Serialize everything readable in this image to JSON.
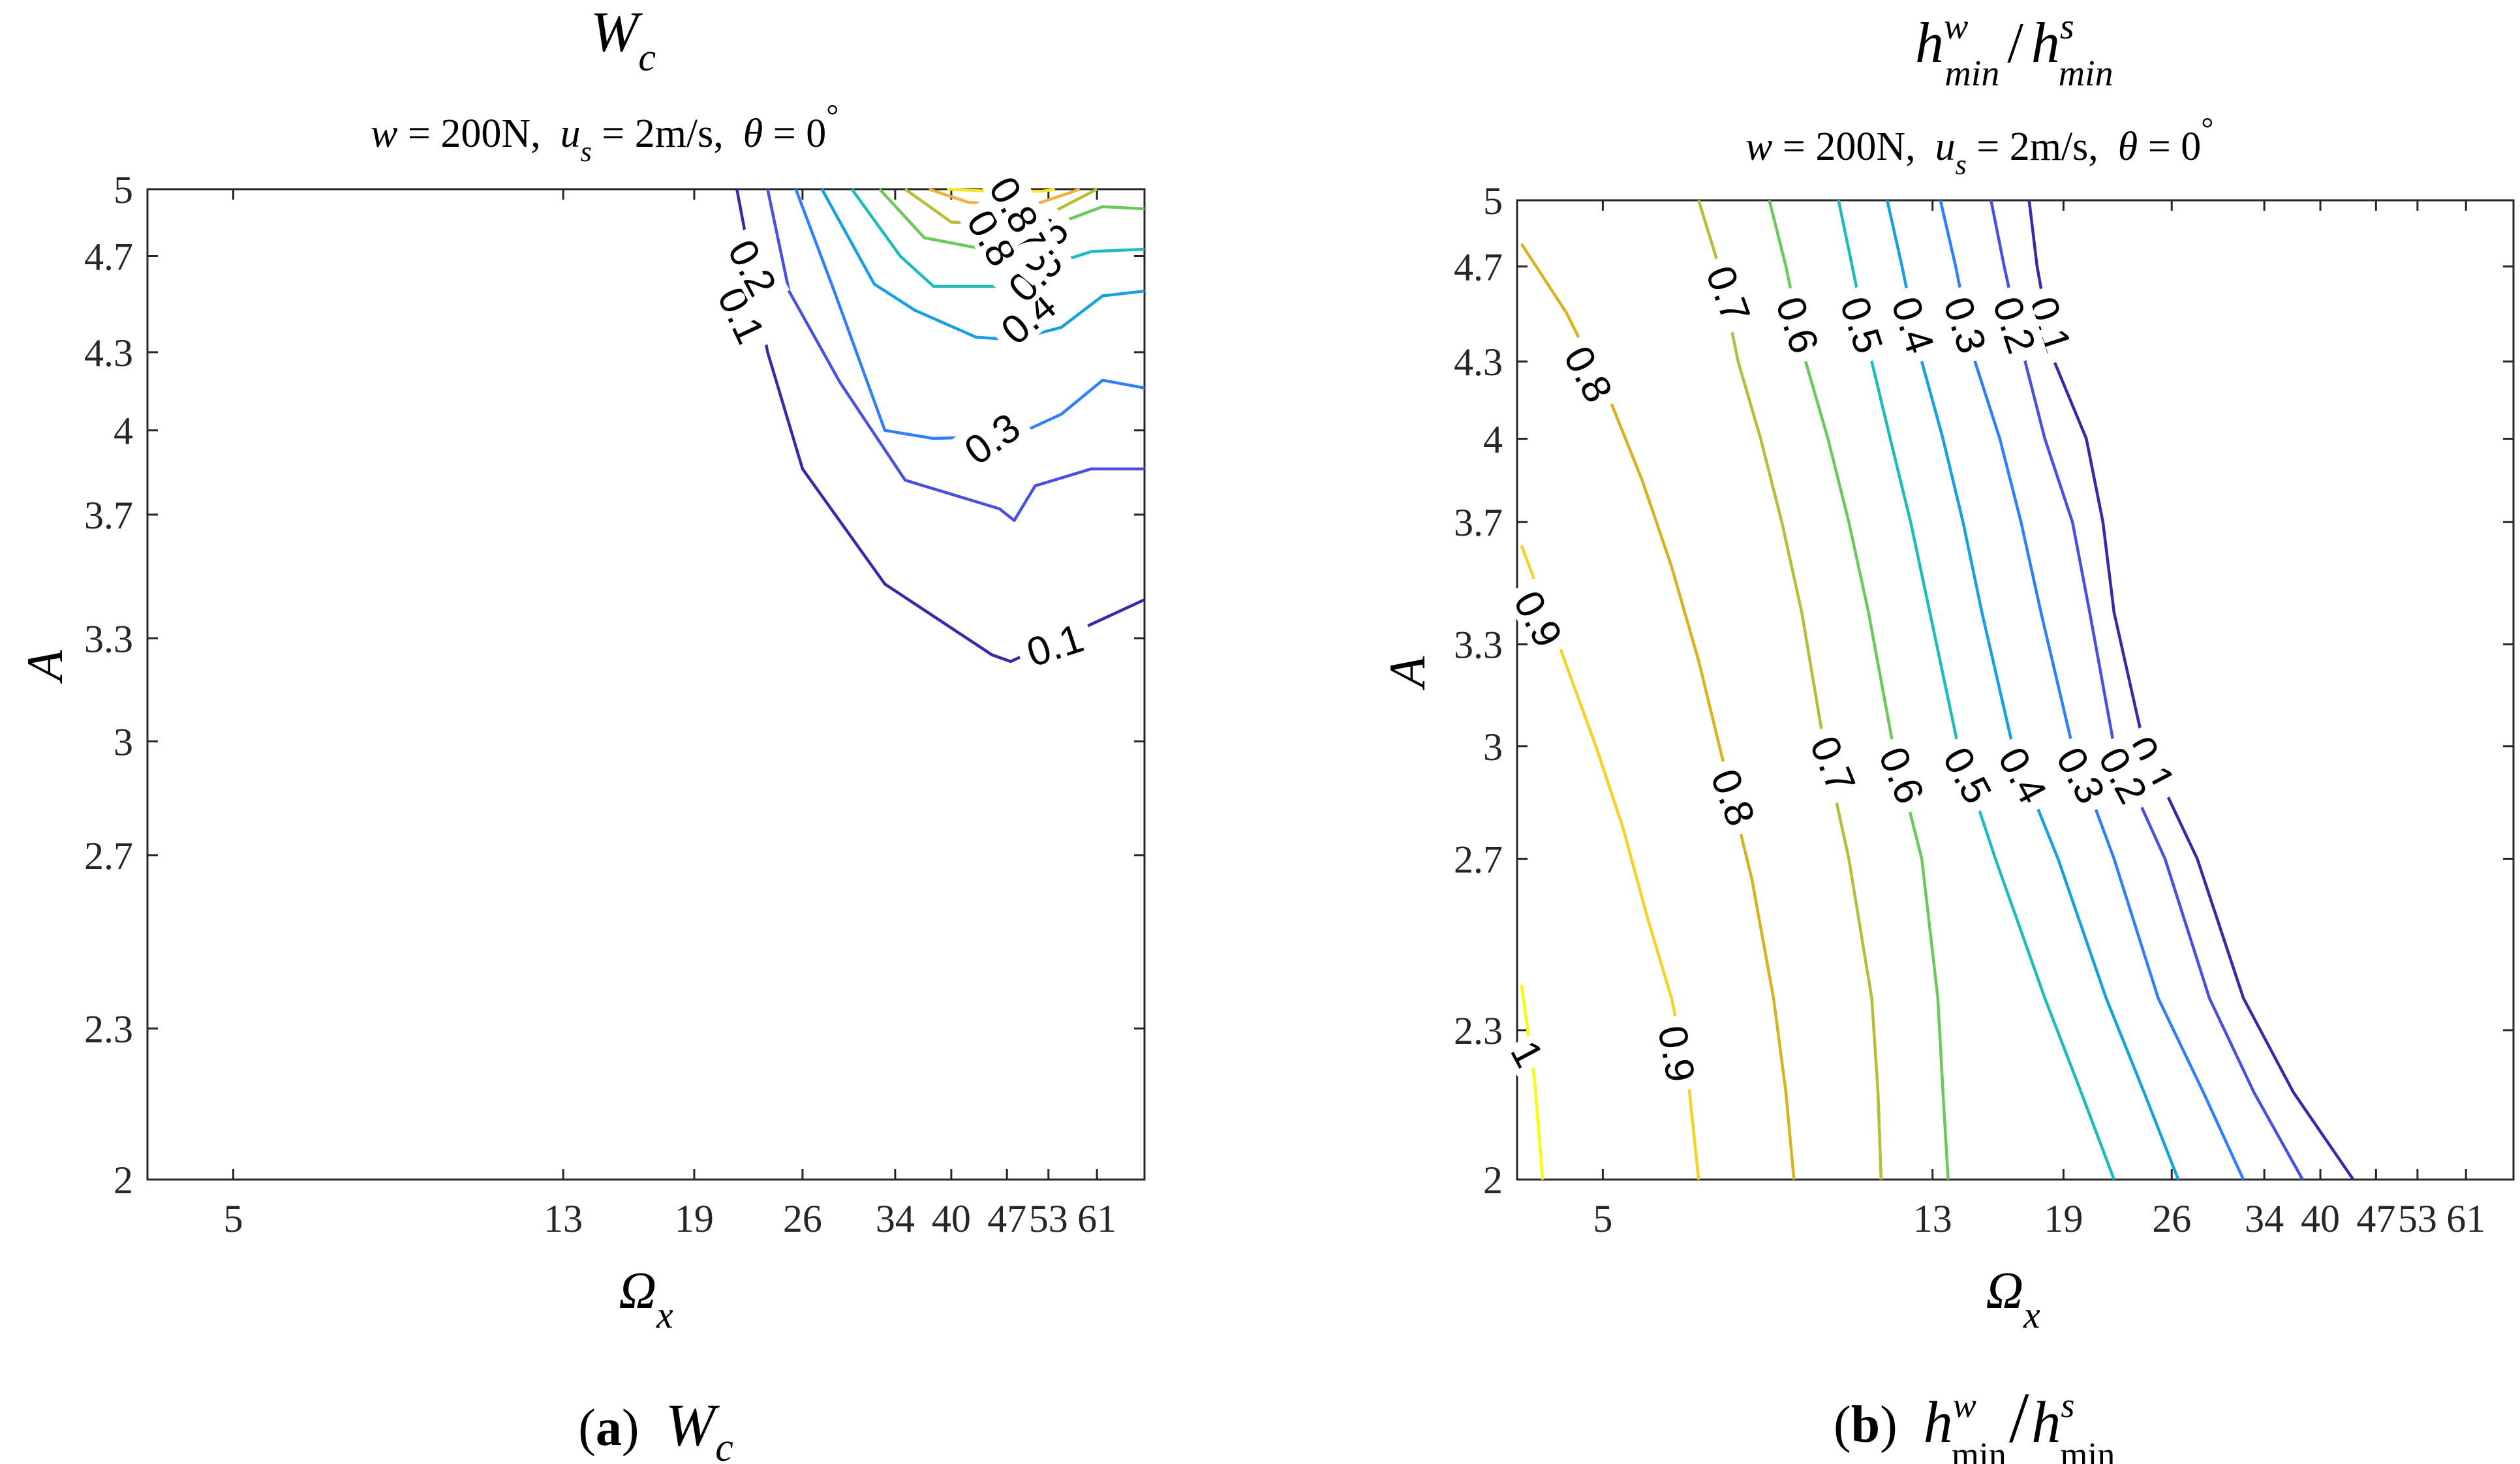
{
  "figure": {
    "panels": [
      {
        "id": "a",
        "title_main": "W",
        "title_sub": "c",
        "conditions": {
          "w_sym": "w",
          "w_val": " = 200N,",
          "u_sym": "u",
          "u_sub": "s",
          "u_val": " = 2m/s,",
          "theta_sym": "θ",
          "theta_val": " = 0",
          "deg": "°"
        },
        "xlabel_main": "Ω",
        "xlabel_sub": "x",
        "ylabel": "A",
        "caption": {
          "letter_open": "(",
          "letter": "a",
          "letter_close": ")",
          "main": "W",
          "sub": "c"
        }
      },
      {
        "id": "b",
        "title_main": "h / h",
        "title_sup1": "w",
        "title_sub1": "min",
        "title_sup2": "s",
        "title_sub2": "min",
        "conditions": {
          "w_sym": "w",
          "w_val": " = 200N,",
          "u_sym": "u",
          "u_sub": "s",
          "u_val": " = 2m/s,",
          "theta_sym": "θ",
          "theta_val": " = 0",
          "deg": "°"
        },
        "xlabel_main": "Ω",
        "xlabel_sub": "x",
        "ylabel": "A",
        "caption": {
          "letter_open": "(",
          "letter": "b",
          "letter_close": ")",
          "sup1": "w",
          "sub1": "min",
          "sup2": "s",
          "sub2": "min"
        }
      }
    ]
  },
  "chart_data": [
    {
      "type": "contour",
      "title": "W_c",
      "xlabel": "Ω_x",
      "ylabel": "A",
      "x_axis": {
        "scale": "log",
        "range": [
          3.9,
          70
        ],
        "ticks": [
          5,
          13,
          19,
          26,
          34,
          40,
          47,
          53,
          61
        ],
        "tick_labels": [
          "5",
          "13",
          "19",
          "26",
          "34",
          "40",
          "47",
          "53",
          "61"
        ]
      },
      "y_axis": {
        "scale": "log",
        "range": [
          2,
          5
        ],
        "ticks": [
          2,
          2.3,
          2.7,
          3,
          3.3,
          3.7,
          4,
          4.3,
          4.7,
          5
        ],
        "tick_labels": [
          "2",
          "2.3",
          "2.7",
          "3",
          "3.3",
          "3.7",
          "4",
          "4.3",
          "4.7",
          "5"
        ]
      },
      "levels": [
        {
          "level": 0.1,
          "color": "#3e26a8",
          "points": [
            [
              21.5,
              5.0
            ],
            [
              23.5,
              4.3
            ],
            [
              26,
              3.86
            ],
            [
              33,
              3.47
            ],
            [
              45,
              3.25
            ],
            [
              47.5,
              3.23
            ],
            [
              70,
              3.42
            ]
          ]
        },
        {
          "level": 0.2,
          "color": "#4850e0",
          "points": [
            [
              23.5,
              5.0
            ],
            [
              25,
              4.55
            ],
            [
              29,
              4.18
            ],
            [
              35,
              3.82
            ],
            [
              46,
              3.72
            ],
            [
              48,
              3.68
            ],
            [
              51,
              3.8
            ],
            [
              60,
              3.86
            ],
            [
              70,
              3.86
            ]
          ]
        },
        {
          "level": 0.3,
          "color": "#2f7ffb",
          "points": [
            [
              25.5,
              5.0
            ],
            [
              28.5,
              4.55
            ],
            [
              33,
              4.0
            ],
            [
              38,
              3.97
            ],
            [
              48,
              3.98
            ],
            [
              55,
              4.06
            ],
            [
              62,
              4.19
            ],
            [
              70,
              4.16
            ]
          ]
        },
        {
          "level": 0.4,
          "color": "#16a0e1",
          "points": [
            [
              27.5,
              5.0
            ],
            [
              32,
              4.58
            ],
            [
              36,
              4.47
            ],
            [
              43,
              4.36
            ],
            [
              48,
              4.35
            ],
            [
              55,
              4.4
            ],
            [
              62,
              4.53
            ],
            [
              70,
              4.55
            ]
          ]
        },
        {
          "level": 0.5,
          "color": "#1cbcbb",
          "points": [
            [
              30,
              5.0
            ],
            [
              34.5,
              4.7
            ],
            [
              38,
              4.57
            ],
            [
              46,
              4.57
            ],
            [
              52,
              4.65
            ],
            [
              60,
              4.72
            ],
            [
              70,
              4.73
            ]
          ]
        },
        {
          "level": 0.6,
          "color": "#6bc85a",
          "points": [
            [
              32.5,
              5.0
            ],
            [
              37,
              4.78
            ],
            [
              44,
              4.73
            ],
            [
              50,
              4.78
            ],
            [
              56,
              4.86
            ],
            [
              62,
              4.92
            ],
            [
              70,
              4.91
            ]
          ]
        },
        {
          "level": 0.7,
          "color": "#b6bd38",
          "points": [
            [
              35,
              5.0
            ],
            [
              40,
              4.85
            ],
            [
              48,
              4.84
            ],
            [
              54,
              4.9
            ],
            [
              61,
              5.0
            ]
          ]
        },
        {
          "level": 0.8,
          "color": "#f2b03c",
          "points": [
            [
              37.5,
              5.0
            ],
            [
              42,
              4.94
            ],
            [
              50,
              4.92
            ],
            [
              56,
              4.98
            ],
            [
              58,
              5.0
            ]
          ]
        },
        {
          "level": 0.9,
          "color": "#f9e821",
          "points": [
            [
              39.5,
              5.0
            ],
            [
              45,
              4.99
            ],
            [
              52,
              4.99
            ],
            [
              54,
              5.0
            ]
          ]
        }
      ],
      "contour_labels": [
        {
          "text": "0.1",
          "x": 54,
          "y": 3.28,
          "rotate": -18
        },
        {
          "text": "0.1",
          "x": 21.8,
          "y": 4.45,
          "rotate": 65
        },
        {
          "text": "0.2",
          "x": 22.5,
          "y": 4.65,
          "rotate": 62
        },
        {
          "text": "0.3",
          "x": 45,
          "y": 3.97,
          "rotate": -35
        },
        {
          "text": "0.4",
          "x": 50,
          "y": 4.44,
          "rotate": -40
        },
        {
          "text": "0.5",
          "x": 51,
          "y": 4.62,
          "rotate": -45
        },
        {
          "text": "0.6",
          "x": 52,
          "y": 4.75,
          "rotate": -50
        },
        {
          "text": "0.8",
          "x": 45,
          "y": 4.78,
          "rotate": 60
        },
        {
          "text": "0.7",
          "x": 49,
          "y": 4.84,
          "rotate": 60
        },
        {
          "text": "0.8",
          "x": 48,
          "y": 4.93,
          "rotate": 60
        }
      ]
    },
    {
      "type": "contour",
      "title": "h^w_min / h^s_min",
      "xlabel": "Ω_x",
      "ylabel": "A",
      "x_axis": {
        "scale": "log",
        "range": [
          3.9,
          70
        ],
        "ticks": [
          5,
          13,
          19,
          26,
          34,
          40,
          47,
          53,
          61
        ],
        "tick_labels": [
          "5",
          "13",
          "19",
          "26",
          "34",
          "40",
          "47",
          "53",
          "61"
        ]
      },
      "y_axis": {
        "scale": "log",
        "range": [
          2,
          5
        ],
        "ticks": [
          2,
          2.3,
          2.7,
          3,
          3.3,
          3.7,
          4,
          4.3,
          4.7,
          5
        ],
        "tick_labels": [
          "2",
          "2.3",
          "2.7",
          "3",
          "3.3",
          "3.7",
          "4",
          "4.3",
          "4.7",
          "5"
        ]
      },
      "levels": [
        {
          "level": 0.1,
          "color": "#3e26a8",
          "points": [
            [
              17.2,
              5.0
            ],
            [
              17.6,
              4.7
            ],
            [
              18.5,
              4.3
            ],
            [
              20.3,
              4.0
            ],
            [
              21.3,
              3.7
            ],
            [
              22,
              3.4
            ],
            [
              24,
              3.0
            ],
            [
              28,
              2.7
            ],
            [
              32,
              2.37
            ],
            [
              37,
              2.17
            ],
            [
              44,
              2.0
            ]
          ]
        },
        {
          "level": 0.2,
          "color": "#4850e0",
          "points": [
            [
              15.4,
              5.0
            ],
            [
              16,
              4.7
            ],
            [
              17,
              4.3
            ],
            [
              18,
              4.0
            ],
            [
              19.5,
              3.7
            ],
            [
              20.5,
              3.4
            ],
            [
              22,
              3.0
            ],
            [
              25.5,
              2.7
            ],
            [
              29,
              2.37
            ],
            [
              33,
              2.17
            ],
            [
              38,
              2.0
            ]
          ]
        },
        {
          "level": 0.3,
          "color": "#2f7ffb",
          "points": [
            [
              13.3,
              5.0
            ],
            [
              13.9,
              4.7
            ],
            [
              14.7,
              4.3
            ],
            [
              15.8,
              4.0
            ],
            [
              16.8,
              3.7
            ],
            [
              17.8,
              3.4
            ],
            [
              19.5,
              3.0
            ],
            [
              22,
              2.7
            ],
            [
              25,
              2.37
            ],
            [
              28.5,
              2.17
            ],
            [
              32,
              2.0
            ]
          ]
        },
        {
          "level": 0.4,
          "color": "#16a0e1",
          "points": [
            [
              11.4,
              5.0
            ],
            [
              11.9,
              4.7
            ],
            [
              12.6,
              4.3
            ],
            [
              13.4,
              4.0
            ],
            [
              14.2,
              3.7
            ],
            [
              15,
              3.4
            ],
            [
              16.4,
              3.0
            ],
            [
              18.7,
              2.7
            ],
            [
              21.5,
              2.37
            ],
            [
              24,
              2.17
            ],
            [
              26.5,
              2.0
            ]
          ]
        },
        {
          "level": 0.5,
          "color": "#1cbcbb",
          "points": [
            [
              9.9,
              5.0
            ],
            [
              10.3,
              4.7
            ],
            [
              10.9,
              4.3
            ],
            [
              11.5,
              4.0
            ],
            [
              12.2,
              3.7
            ],
            [
              12.9,
              3.4
            ],
            [
              14,
              3.0
            ],
            [
              15.6,
              2.7
            ],
            [
              18,
              2.37
            ],
            [
              20,
              2.17
            ],
            [
              22,
              2.0
            ]
          ]
        },
        {
          "level": 0.6,
          "color": "#6bc85a",
          "points": [
            [
              8.1,
              5.0
            ],
            [
              8.5,
              4.7
            ],
            [
              9,
              4.3
            ],
            [
              9.6,
              4.0
            ],
            [
              10.2,
              3.7
            ],
            [
              10.8,
              3.4
            ],
            [
              11.6,
              3.0
            ],
            [
              12.6,
              2.7
            ],
            [
              13.2,
              2.37
            ],
            [
              13.4,
              2.17
            ],
            [
              13.6,
              2.0
            ]
          ]
        },
        {
          "level": 0.7,
          "color": "#b6bd38",
          "points": [
            [
              6.6,
              5.0
            ],
            [
              7,
              4.7
            ],
            [
              7.4,
              4.3
            ],
            [
              7.9,
              4.0
            ],
            [
              8.4,
              3.7
            ],
            [
              8.9,
              3.4
            ],
            [
              9.5,
              3.0
            ],
            [
              10.2,
              2.7
            ],
            [
              10.9,
              2.37
            ],
            [
              11.1,
              2.17
            ],
            [
              11.2,
              2.0
            ]
          ]
        },
        {
          "level": 0.8,
          "color": "#d8b21f",
          "points": [
            [
              3.95,
              4.8
            ],
            [
              4.5,
              4.5
            ],
            [
              5.1,
              4.15
            ],
            [
              5.6,
              3.85
            ],
            [
              6.1,
              3.55
            ],
            [
              6.6,
              3.25
            ],
            [
              7.1,
              2.95
            ],
            [
              7.7,
              2.65
            ],
            [
              8.2,
              2.37
            ],
            [
              8.5,
              2.17
            ],
            [
              8.7,
              2.0
            ]
          ]
        },
        {
          "level": 0.9,
          "color": "#f5d326",
          "points": [
            [
              3.95,
              3.62
            ],
            [
              4.4,
              3.3
            ],
            [
              4.9,
              3.0
            ],
            [
              5.3,
              2.78
            ],
            [
              5.7,
              2.55
            ],
            [
              6.1,
              2.37
            ],
            [
              6.4,
              2.2
            ],
            [
              6.6,
              2.0
            ]
          ]
        },
        {
          "level": 1.0,
          "color": "#f9fb0e",
          "points": [
            [
              3.95,
              2.4
            ],
            [
              4.1,
              2.2
            ],
            [
              4.2,
              2.0
            ]
          ]
        }
      ],
      "contour_labels": [
        {
          "text": "0.1",
          "x": 18.3,
          "y": 4.45,
          "rotate": 72
        },
        {
          "text": "0.2",
          "x": 16.5,
          "y": 4.45,
          "rotate": 72
        },
        {
          "text": "0.3",
          "x": 14.3,
          "y": 4.45,
          "rotate": 72
        },
        {
          "text": "0.4",
          "x": 12.3,
          "y": 4.45,
          "rotate": 72
        },
        {
          "text": "0.5",
          "x": 10.6,
          "y": 4.45,
          "rotate": 72
        },
        {
          "text": "0.6",
          "x": 8.8,
          "y": 4.45,
          "rotate": 72
        },
        {
          "text": "0.7",
          "x": 7.2,
          "y": 4.58,
          "rotate": 70
        },
        {
          "text": "0.8",
          "x": 4.8,
          "y": 4.25,
          "rotate": 62
        },
        {
          "text": "0.9",
          "x": 4.15,
          "y": 3.38,
          "rotate": 62
        },
        {
          "text": "1",
          "x": 4.02,
          "y": 2.25,
          "rotate": 62
        },
        {
          "text": "0.1",
          "x": 24.5,
          "y": 2.95,
          "rotate": 62
        },
        {
          "text": "0.2",
          "x": 22.6,
          "y": 2.92,
          "rotate": 62
        },
        {
          "text": "0.3",
          "x": 20.0,
          "y": 2.92,
          "rotate": 62
        },
        {
          "text": "0.4",
          "x": 16.9,
          "y": 2.92,
          "rotate": 62
        },
        {
          "text": "0.5",
          "x": 14.4,
          "y": 2.92,
          "rotate": 62
        },
        {
          "text": "0.6",
          "x": 11.9,
          "y": 2.92,
          "rotate": 68
        },
        {
          "text": "0.7",
          "x": 9.75,
          "y": 2.95,
          "rotate": 68
        },
        {
          "text": "0.8",
          "x": 7.3,
          "y": 2.86,
          "rotate": 70
        },
        {
          "text": "0.9",
          "x": 6.2,
          "y": 2.25,
          "rotate": 80
        }
      ]
    }
  ]
}
